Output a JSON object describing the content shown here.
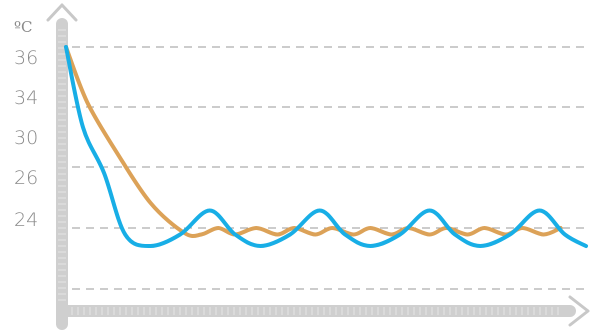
{
  "chart_data": {
    "type": "line",
    "title": "",
    "xlabel": "",
    "ylabel": "ºC",
    "y_ticks": [
      "36",
      "34",
      "30",
      "26",
      "24"
    ],
    "grid": "horizontal dashed",
    "legend": "none",
    "series": [
      {
        "color": "#18aee6",
        "shape": "exponential drop then large periodic oscillation",
        "points": [
          [
            0,
            36.5
          ],
          [
            0.4,
            31
          ],
          [
            0.9,
            26.5
          ],
          [
            1.4,
            23.6
          ],
          [
            2.0,
            22.9
          ],
          [
            2.7,
            23.6
          ],
          [
            3.4,
            24.7
          ],
          [
            4.0,
            23.6
          ],
          [
            4.6,
            22.9
          ],
          [
            5.3,
            23.6
          ],
          [
            6.0,
            24.7
          ],
          [
            6.6,
            23.6
          ],
          [
            7.2,
            22.9
          ],
          [
            7.9,
            23.6
          ],
          [
            8.6,
            24.7
          ],
          [
            9.2,
            23.6
          ],
          [
            9.8,
            22.9
          ],
          [
            10.5,
            23.6
          ],
          [
            11.2,
            24.7
          ],
          [
            11.8,
            23.6
          ],
          [
            12.3,
            22.9
          ]
        ]
      },
      {
        "color": "#dca258",
        "shape": "slower drop then small ripple around setpoint",
        "points": [
          [
            0,
            36.5
          ],
          [
            0.5,
            33.5
          ],
          [
            1.2,
            28.5
          ],
          [
            2.0,
            25
          ],
          [
            2.8,
            23.7
          ],
          [
            3.2,
            23.6
          ],
          [
            3.6,
            24.0
          ],
          [
            4.0,
            23.6
          ],
          [
            4.5,
            24.0
          ],
          [
            5.0,
            23.6
          ],
          [
            5.4,
            24.0
          ],
          [
            5.9,
            23.6
          ],
          [
            6.3,
            24.0
          ],
          [
            6.8,
            23.6
          ],
          [
            7.2,
            24.0
          ],
          [
            7.7,
            23.6
          ],
          [
            8.1,
            24.0
          ],
          [
            8.6,
            23.6
          ],
          [
            9.0,
            24.0
          ],
          [
            9.5,
            23.6
          ],
          [
            9.9,
            24.0
          ],
          [
            10.4,
            23.6
          ],
          [
            10.8,
            24.0
          ],
          [
            11.3,
            23.6
          ],
          [
            11.7,
            24.0
          ]
        ]
      }
    ]
  }
}
